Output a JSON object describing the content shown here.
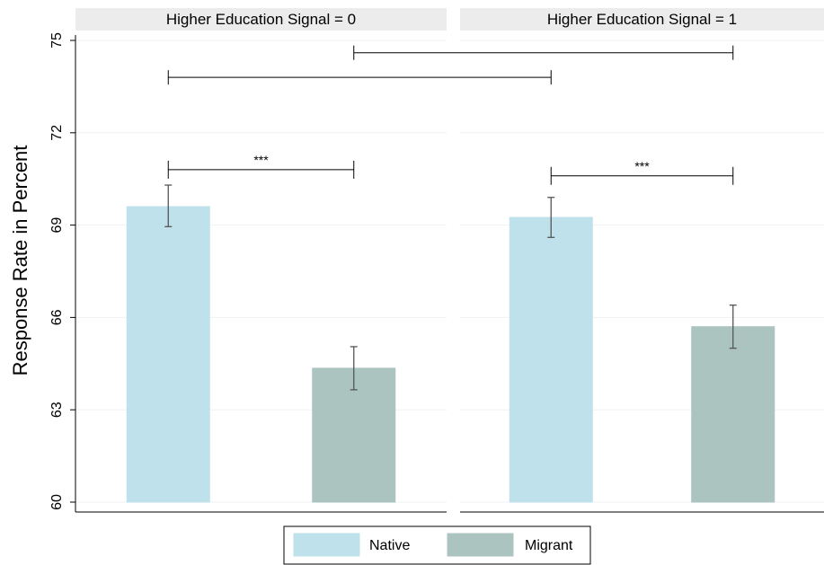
{
  "chart_data": {
    "type": "bar",
    "ylabel": "Response Rate in Percent",
    "ylim": [
      60,
      75
    ],
    "yticks": [
      60,
      63,
      66,
      69,
      72,
      75
    ],
    "grid": true,
    "legend_position": "bottom-center",
    "colors": {
      "Native": "#bfe1eb",
      "Migrant": "#abc4bf"
    },
    "panels": [
      {
        "strip": "Higher Education Signal = 0",
        "bars": [
          {
            "series": "Native",
            "value": 69.6,
            "ci_low": 68.95,
            "ci_high": 70.3
          },
          {
            "series": "Migrant",
            "value": 64.35,
            "ci_low": 63.65,
            "ci_high": 65.05
          }
        ],
        "within_bracket": {
          "label": "***",
          "y": 70.8
        }
      },
      {
        "strip": "Higher Education Signal = 1",
        "bars": [
          {
            "series": "Native",
            "value": 69.25,
            "ci_low": 68.6,
            "ci_high": 69.9
          },
          {
            "series": "Migrant",
            "value": 65.7,
            "ci_low": 65.0,
            "ci_high": 66.4
          }
        ],
        "within_bracket": {
          "label": "***",
          "y": 70.6
        }
      }
    ],
    "cross_brackets": [
      {
        "from_panel": 0,
        "from_bar": 0,
        "to_panel": 1,
        "to_bar": 0,
        "label": "",
        "y": 73.8
      },
      {
        "from_panel": 0,
        "from_bar": 1,
        "to_panel": 1,
        "to_bar": 1,
        "label": "",
        "y": 74.6
      }
    ],
    "legend": [
      "Native",
      "Migrant"
    ]
  }
}
